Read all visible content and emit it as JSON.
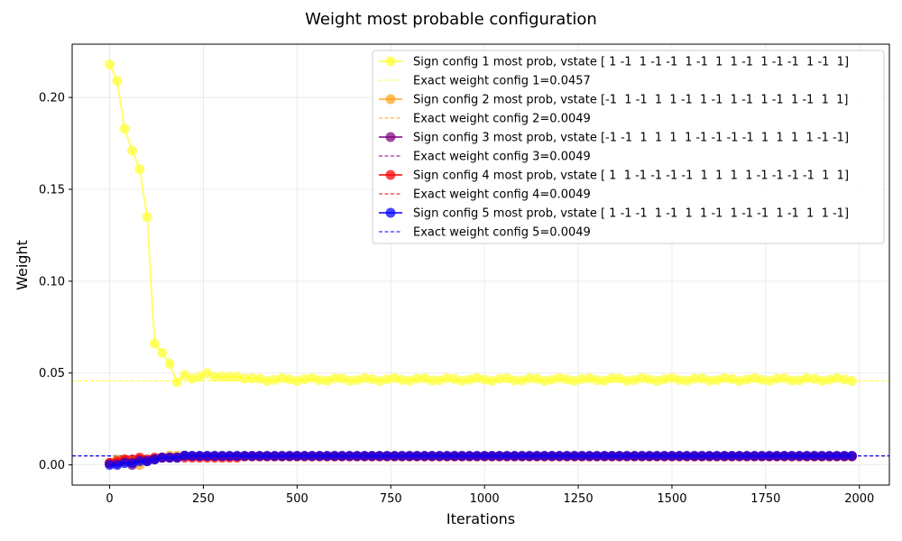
{
  "chart_data": {
    "type": "line",
    "title": "Weight most probable configuration",
    "xlabel": "Iterations",
    "ylabel": "Weight",
    "xlim": [
      -100,
      2080
    ],
    "ylim": [
      -0.011,
      0.229
    ],
    "xticks": [
      0,
      250,
      500,
      750,
      1000,
      1250,
      1500,
      1750,
      2000
    ],
    "yticks": [
      0.0,
      0.05,
      0.1,
      0.15,
      0.2
    ],
    "ytick_labels": [
      "0.00",
      "0.05",
      "0.10",
      "0.15",
      "0.20"
    ],
    "grid": true,
    "legend_position": "top-right",
    "x": [
      0,
      20,
      40,
      60,
      80,
      100,
      120,
      140,
      160,
      180,
      200,
      220,
      240,
      260,
      280,
      300,
      320,
      340,
      360,
      380,
      400,
      420,
      440,
      460,
      480,
      500,
      520,
      540,
      560,
      580,
      600,
      620,
      640,
      660,
      680,
      700,
      720,
      740,
      760,
      780,
      800,
      820,
      840,
      860,
      880,
      900,
      920,
      940,
      960,
      980,
      1000,
      1020,
      1040,
      1060,
      1080,
      1100,
      1120,
      1140,
      1160,
      1180,
      1200,
      1220,
      1240,
      1260,
      1280,
      1300,
      1320,
      1340,
      1360,
      1380,
      1400,
      1420,
      1440,
      1460,
      1480,
      1500,
      1520,
      1540,
      1560,
      1580,
      1600,
      1620,
      1640,
      1660,
      1680,
      1700,
      1720,
      1740,
      1760,
      1780,
      1800,
      1820,
      1840,
      1860,
      1880,
      1900,
      1920,
      1940,
      1960,
      1980
    ],
    "series": [
      {
        "name": "Sign config 1 most prob, vstate [ 1 -1  1 -1 -1  1 -1  1  1 -1  1 -1 -1  1 -1  1]",
        "color": "#ffff33",
        "y_head": [
          0.218,
          0.209,
          0.183,
          0.171,
          0.161,
          0.135,
          0.066,
          0.061,
          0.055,
          0.045,
          0.049,
          0.047,
          0.048,
          0.05,
          0.048,
          0.048,
          0.048,
          0.048,
          0.047
        ],
        "y_tail": 0.0465,
        "jitter": 0.0008
      },
      {
        "name": "Sign config 2 most prob, vstate [-1  1 -1  1  1 -1  1 -1  1 -1  1 -1  1 -1  1  1]",
        "color": "#ffa520",
        "y_head": [
          0.001,
          0.003,
          0.003,
          0.002,
          0.0,
          0.002,
          0.003,
          0.004,
          0.005,
          0.005,
          0.005
        ],
        "y_tail": 0.0048,
        "jitter": 0.0
      },
      {
        "name": "Sign config 3 most prob, vstate [-1 -1  1  1  1  1 -1 -1 -1 -1  1  1  1  1 -1 -1]",
        "color": "#800080",
        "y_head": [
          0.001,
          0.001,
          0.002,
          0.0,
          0.003,
          0.002,
          0.003,
          0.004,
          0.004,
          0.004,
          0.005
        ],
        "y_tail": 0.0048,
        "jitter": 0.0
      },
      {
        "name": "Sign config 4 most prob, vstate [ 1  1 -1 -1 -1 -1  1  1  1  1 -1 -1 -1 -1  1  1]",
        "color": "#ff0000",
        "y_head": [
          0.001,
          0.002,
          0.003,
          0.003,
          0.004,
          0.003,
          0.004,
          0.004,
          0.004,
          0.004,
          0.004,
          0.004,
          0.004,
          0.004,
          0.004,
          0.004,
          0.004,
          0.004
        ],
        "y_tail": 0.0046,
        "jitter": 0.0
      },
      {
        "name": "Sign config 5 most prob, vstate [ 1 -1 -1  1 -1  1  1 -1  1 -1 -1  1 -1  1  1 -1]",
        "color": "#0000ff",
        "y_head": [
          0.0,
          0.0,
          0.001,
          0.001,
          0.002,
          0.002,
          0.003,
          0.004,
          0.004,
          0.004,
          0.005
        ],
        "y_tail": 0.0049,
        "jitter": 0.0
      }
    ],
    "reference_lines": [
      {
        "name": "Exact weight config 1=0.0457",
        "y": 0.0457,
        "color": "#ffff33"
      },
      {
        "name": "Exact weight config 2=0.0049",
        "y": 0.0049,
        "color": "#ffa520"
      },
      {
        "name": "Exact weight config 3=0.0049",
        "y": 0.0049,
        "color": "#800080"
      },
      {
        "name": "Exact weight config 4=0.0049",
        "y": 0.0049,
        "color": "#ff0000"
      },
      {
        "name": "Exact weight config 5=0.0049",
        "y": 0.0049,
        "color": "#0000ff"
      }
    ],
    "legend_order": [
      "s0",
      "r0",
      "s1",
      "r1",
      "s2",
      "r2",
      "s3",
      "r3",
      "s4",
      "r4"
    ]
  }
}
